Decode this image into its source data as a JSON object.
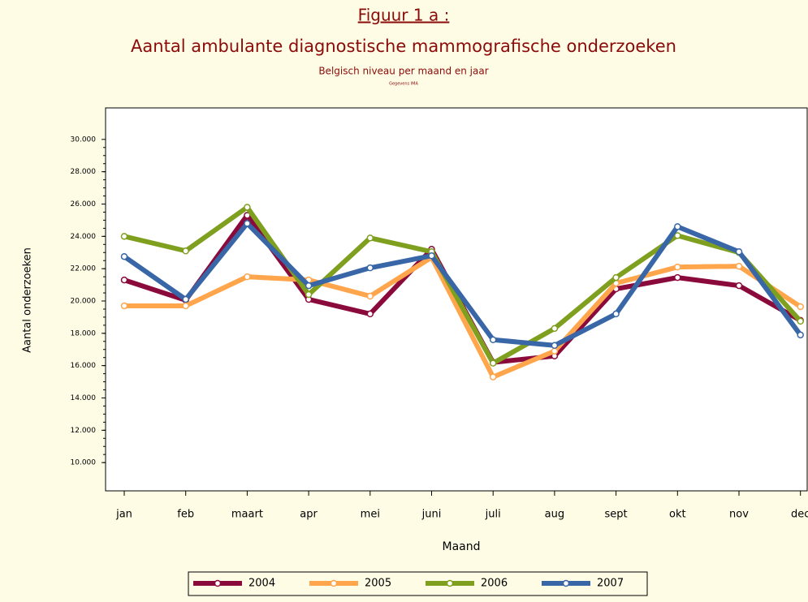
{
  "chart_data": {
    "type": "line",
    "title": "Figuur 1 a :",
    "subtitle": "Aantal ambulante diagnostische mammografische onderzoeken",
    "description": "Belgisch niveau per maand en jaar",
    "source": "Gegevens IMA",
    "x_label": "Maand",
    "y_label": "Aantal onderzoeken",
    "categories": [
      "jan",
      "feb",
      "maart",
      "apr",
      "mei",
      "juni",
      "juli",
      "aug",
      "sept",
      "okt",
      "nov",
      "dec"
    ],
    "series": [
      {
        "name": "2004",
        "color": "#8b0a3c",
        "values": [
          21300,
          20050,
          25300,
          20100,
          19200,
          23200,
          16200,
          16600,
          20750,
          21450,
          20950,
          18800
        ]
      },
      {
        "name": "2005",
        "color": "#ffa64d",
        "values": [
          19700,
          19700,
          21500,
          21300,
          20300,
          22700,
          15300,
          16900,
          21100,
          22100,
          22150,
          19650
        ]
      },
      {
        "name": "2006",
        "color": "#7f9f1f",
        "values": [
          24000,
          23100,
          25800,
          20400,
          23900,
          23050,
          16150,
          18300,
          21450,
          24050,
          23000,
          18750
        ]
      },
      {
        "name": "2007",
        "color": "#3866a6",
        "values": [
          22750,
          20100,
          24800,
          20950,
          22050,
          22800,
          17600,
          17250,
          19200,
          24600,
          23050,
          17900
        ]
      }
    ],
    "ylim": [
      8250,
      31950
    ],
    "yticks": [
      {
        "value": 10000,
        "label": "10.000"
      },
      {
        "value": 12000,
        "label": "12.000"
      },
      {
        "value": 14000,
        "label": "14.000"
      },
      {
        "value": 16000,
        "label": "16.000"
      },
      {
        "value": 18000,
        "label": "18.000"
      },
      {
        "value": 20000,
        "label": "20.000"
      },
      {
        "value": 22000,
        "label": "22.000"
      },
      {
        "value": 24000,
        "label": "24.000"
      },
      {
        "value": 26000,
        "label": "26.000"
      },
      {
        "value": 28000,
        "label": "28.000"
      },
      {
        "value": 30000,
        "label": "30.000"
      }
    ],
    "legend": "bottom"
  }
}
